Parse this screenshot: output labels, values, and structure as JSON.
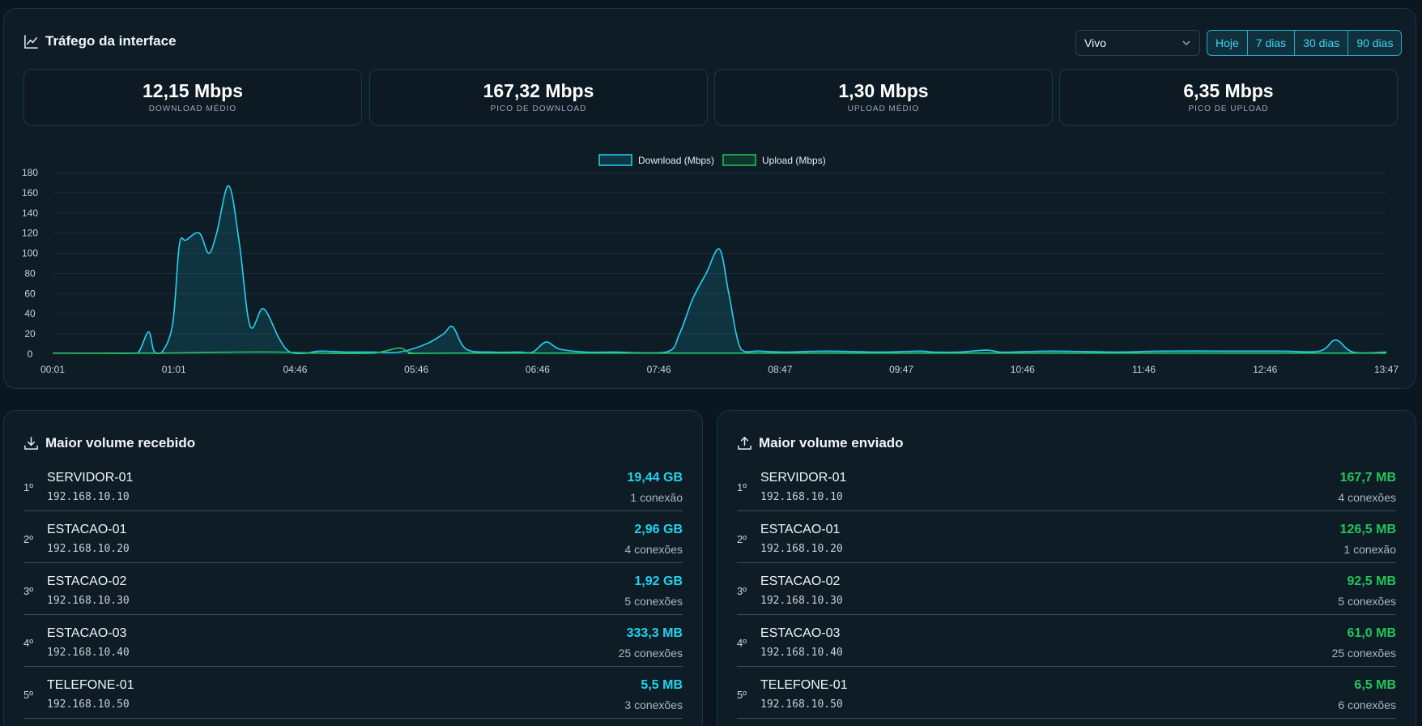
{
  "traffic": {
    "title": "Tráfego da interface",
    "mode_select": "Vivo",
    "ranges": [
      "Hoje",
      "7 dias",
      "30 dias",
      "90 dias"
    ],
    "stats": [
      {
        "value": "12,15 Mbps",
        "label": "DOWNLOAD MÉDIO"
      },
      {
        "value": "167,32 Mbps",
        "label": "PICO DE DOWNLOAD"
      },
      {
        "value": "1,30 Mbps",
        "label": "UPLOAD MÉDIO"
      },
      {
        "value": "6,35 Mbps",
        "label": "PICO DE UPLOAD"
      }
    ]
  },
  "colors": {
    "download": "#22d3ee",
    "upload": "#22c55e",
    "accent": "#3fd6f0"
  },
  "chart_data": {
    "type": "line",
    "legend": [
      "Download (Mbps)",
      "Upload (Mbps)"
    ],
    "legend_position": "top-center",
    "grid": true,
    "ylim": [
      0,
      180
    ],
    "yticks": [
      0,
      20,
      40,
      60,
      80,
      100,
      120,
      140,
      160,
      180
    ],
    "xtick_labels": [
      "00:01",
      "01:01",
      "04:46",
      "05:46",
      "06:46",
      "07:46",
      "08:47",
      "09:47",
      "10:46",
      "11:46",
      "12:46",
      "13:47"
    ],
    "series": [
      {
        "name": "Download (Mbps)",
        "points": [
          [
            0,
            1
          ],
          [
            4,
            1
          ],
          [
            6,
            1
          ],
          [
            6.5,
            3
          ],
          [
            7.2,
            22
          ],
          [
            7.6,
            3
          ],
          [
            8.2,
            2
          ],
          [
            9,
            30
          ],
          [
            9.5,
            108
          ],
          [
            10,
            113
          ],
          [
            11,
            120
          ],
          [
            11.7,
            100
          ],
          [
            12.3,
            120
          ],
          [
            13.2,
            167
          ],
          [
            14,
            110
          ],
          [
            14.8,
            28
          ],
          [
            15.8,
            45
          ],
          [
            17,
            15
          ],
          [
            17.8,
            2
          ],
          [
            19,
            1
          ],
          [
            20,
            3
          ],
          [
            22,
            2
          ],
          [
            24,
            2
          ],
          [
            26,
            2
          ],
          [
            28,
            10
          ],
          [
            29.3,
            20
          ],
          [
            30,
            27
          ],
          [
            31,
            5
          ],
          [
            33,
            2
          ],
          [
            35,
            2
          ],
          [
            36,
            2
          ],
          [
            37,
            12
          ],
          [
            38,
            5
          ],
          [
            40,
            2
          ],
          [
            42,
            2
          ],
          [
            46,
            2
          ],
          [
            47,
            20
          ],
          [
            48,
            55
          ],
          [
            49,
            80
          ],
          [
            50,
            104
          ],
          [
            50.7,
            60
          ],
          [
            51.6,
            5
          ],
          [
            53,
            3
          ],
          [
            55,
            2
          ],
          [
            58,
            3
          ],
          [
            62,
            2
          ],
          [
            65,
            3
          ],
          [
            66,
            2
          ],
          [
            68,
            2
          ],
          [
            70,
            4
          ],
          [
            71,
            2
          ],
          [
            72,
            2
          ],
          [
            75,
            3
          ],
          [
            80,
            2
          ],
          [
            83,
            3
          ],
          [
            88,
            3
          ],
          [
            92,
            3
          ],
          [
            95,
            3
          ],
          [
            96.2,
            14
          ],
          [
            97.5,
            2
          ],
          [
            100,
            2
          ]
        ]
      },
      {
        "name": "Upload (Mbps)",
        "points": [
          [
            0,
            1
          ],
          [
            8,
            1
          ],
          [
            14,
            2
          ],
          [
            17,
            2
          ],
          [
            20,
            1
          ],
          [
            24,
            1
          ],
          [
            26,
            6
          ],
          [
            27,
            1
          ],
          [
            30,
            1
          ],
          [
            60,
            1
          ],
          [
            100,
            1
          ]
        ]
      }
    ]
  },
  "received": {
    "title": "Maior volume recebido",
    "rows": [
      {
        "rank": "1º",
        "name": "SERVIDOR-01",
        "ip": "192.168.10.10",
        "volume": "19,44 GB",
        "connections": "1 conexão"
      },
      {
        "rank": "2º",
        "name": "ESTACAO-01",
        "ip": "192.168.10.20",
        "volume": "2,96 GB",
        "connections": "4 conexões"
      },
      {
        "rank": "3º",
        "name": "ESTACAO-02",
        "ip": "192.168.10.30",
        "volume": "1,92 GB",
        "connections": "5 conexões"
      },
      {
        "rank": "4º",
        "name": "ESTACAO-03",
        "ip": "192.168.10.40",
        "volume": "333,3 MB",
        "connections": "25 conexões"
      },
      {
        "rank": "5º",
        "name": "TELEFONE-01",
        "ip": "192.168.10.50",
        "volume": "5,5 MB",
        "connections": "3 conexões"
      }
    ]
  },
  "sent": {
    "title": "Maior volume enviado",
    "rows": [
      {
        "rank": "1º",
        "name": "SERVIDOR-01",
        "ip": "192.168.10.10",
        "volume": "167,7 MB",
        "connections": "4 conexões"
      },
      {
        "rank": "2º",
        "name": "ESTACAO-01",
        "ip": "192.168.10.20",
        "volume": "126,5 MB",
        "connections": "1 conexão"
      },
      {
        "rank": "3º",
        "name": "ESTACAO-02",
        "ip": "192.168.10.30",
        "volume": "92,5 MB",
        "connections": "5 conexões"
      },
      {
        "rank": "4º",
        "name": "ESTACAO-03",
        "ip": "192.168.10.40",
        "volume": "61,0 MB",
        "connections": "25 conexões"
      },
      {
        "rank": "5º",
        "name": "TELEFONE-01",
        "ip": "192.168.10.50",
        "volume": "6,5 MB",
        "connections": "6 conexões"
      }
    ]
  }
}
